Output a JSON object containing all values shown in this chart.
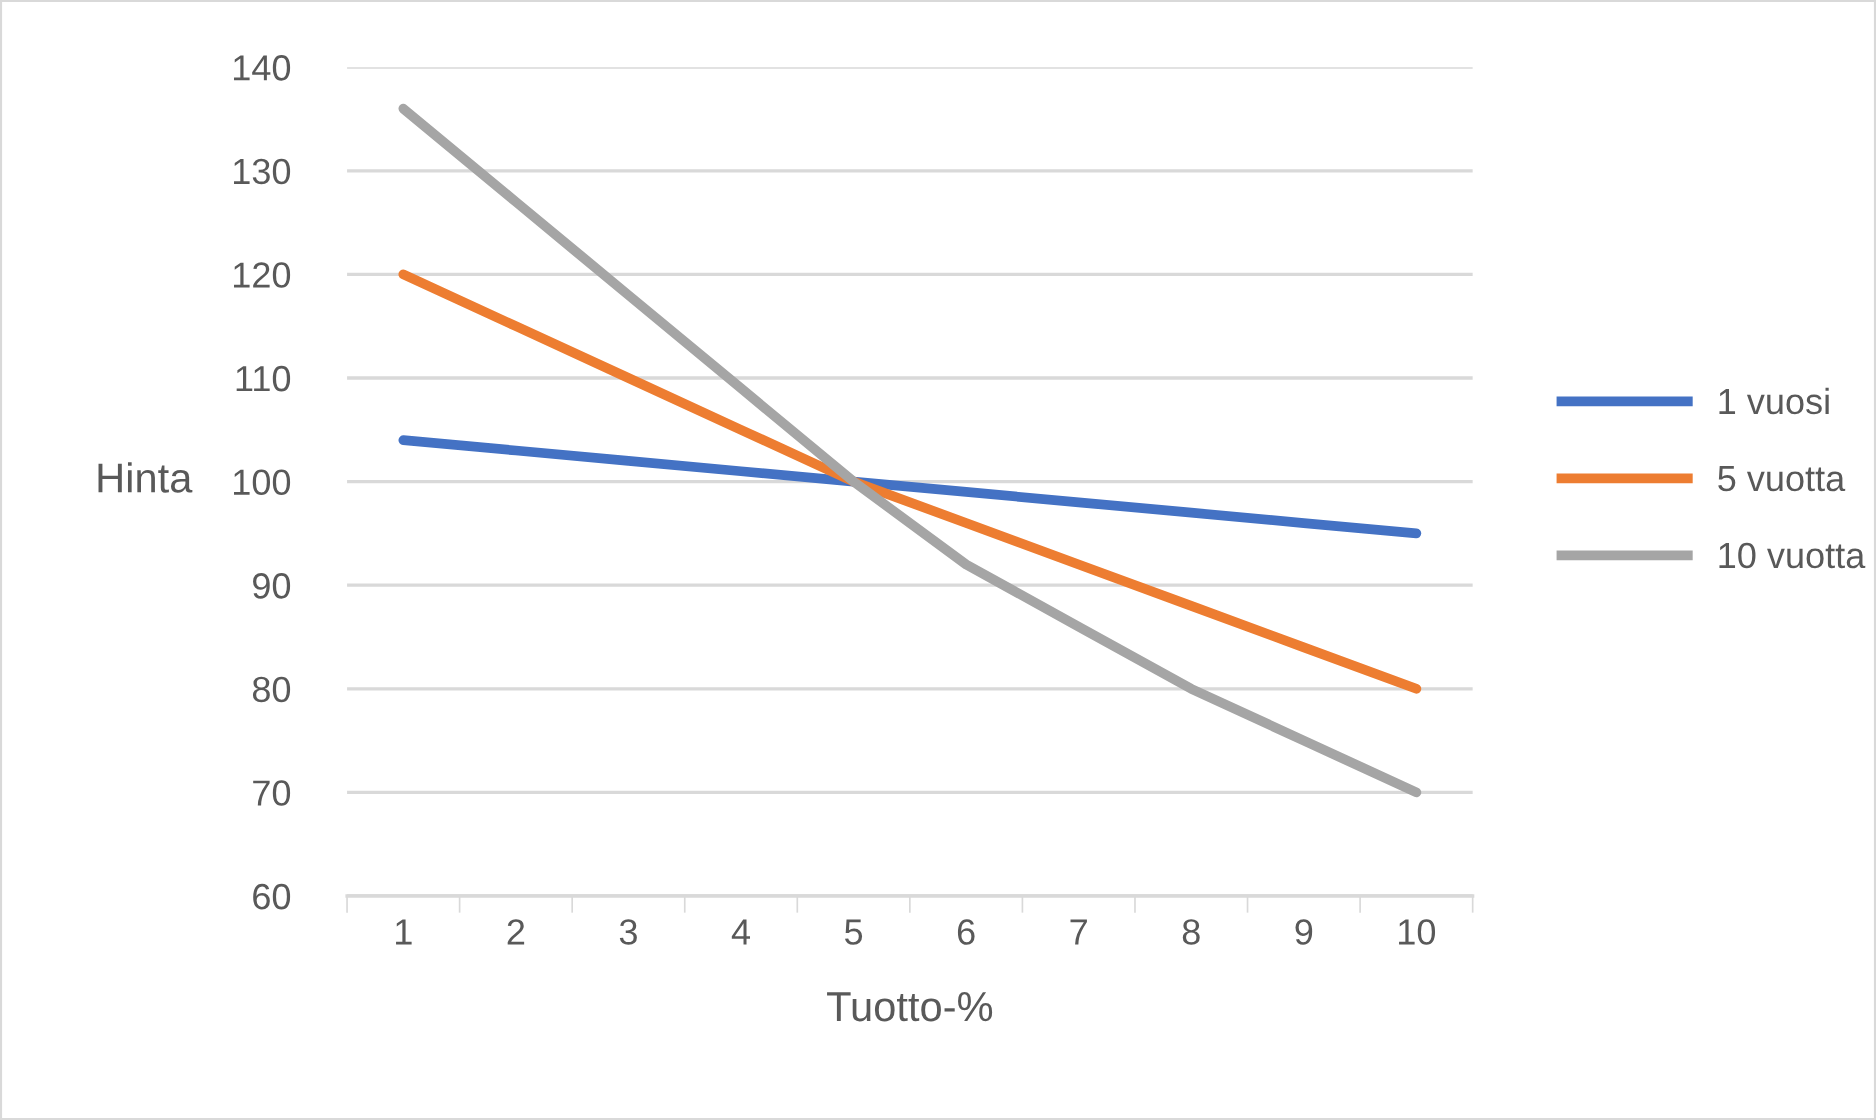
{
  "chart_data": {
    "type": "line",
    "xlabel": "Tuotto-%",
    "ylabel": "Hinta",
    "categories": [
      "1",
      "2",
      "3",
      "4",
      "5",
      "6",
      "7",
      "8",
      "9",
      "10"
    ],
    "series": [
      {
        "name": "1 vuosi",
        "color": "#4472c4",
        "values": [
          104,
          103,
          102,
          101,
          100,
          99,
          98,
          97,
          96,
          95
        ]
      },
      {
        "name": "5 vuotta",
        "color": "#ed7d31",
        "values": [
          120,
          115,
          110,
          105,
          100,
          96,
          92,
          88,
          84,
          80
        ]
      },
      {
        "name": "10 vuotta",
        "color": "#a5a5a5",
        "values": [
          136,
          127,
          118,
          109,
          100,
          92,
          86,
          80,
          75,
          70
        ]
      }
    ],
    "ylim": [
      60,
      140
    ],
    "yticks": [
      60,
      70,
      80,
      90,
      100,
      110,
      120,
      130,
      140
    ],
    "grid": "y",
    "legend": "right",
    "marker": "none",
    "line_style": "solid"
  }
}
